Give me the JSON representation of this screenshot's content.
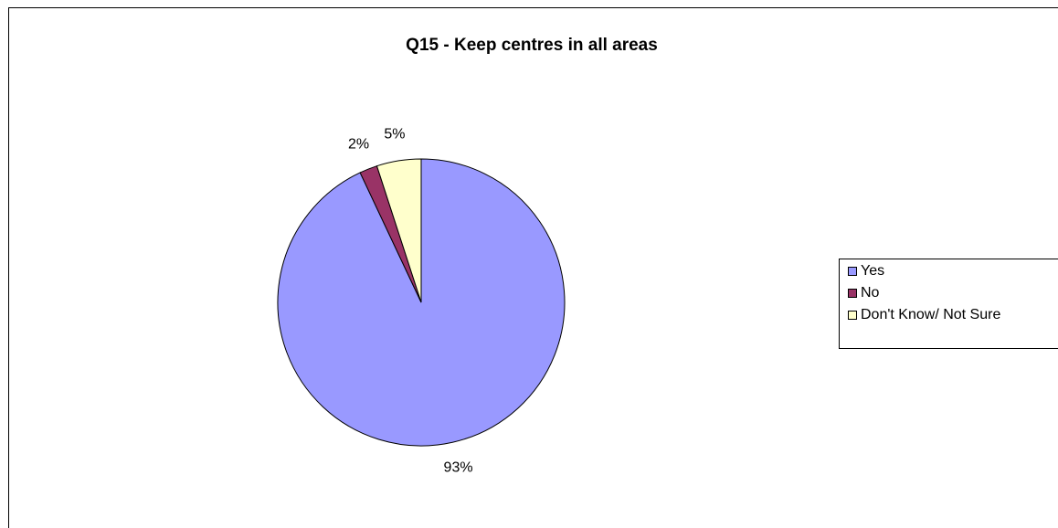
{
  "chart_data": {
    "type": "pie",
    "title": "Q15 - Keep centres in all areas",
    "categories": [
      "Yes",
      "No",
      "Don't Know/ Not Sure"
    ],
    "values": [
      93,
      2,
      5
    ],
    "value_labels": [
      "93%",
      "2%",
      "5%"
    ],
    "colors": [
      "#9999ff",
      "#993366",
      "#ffffcc"
    ],
    "legend": "right"
  }
}
